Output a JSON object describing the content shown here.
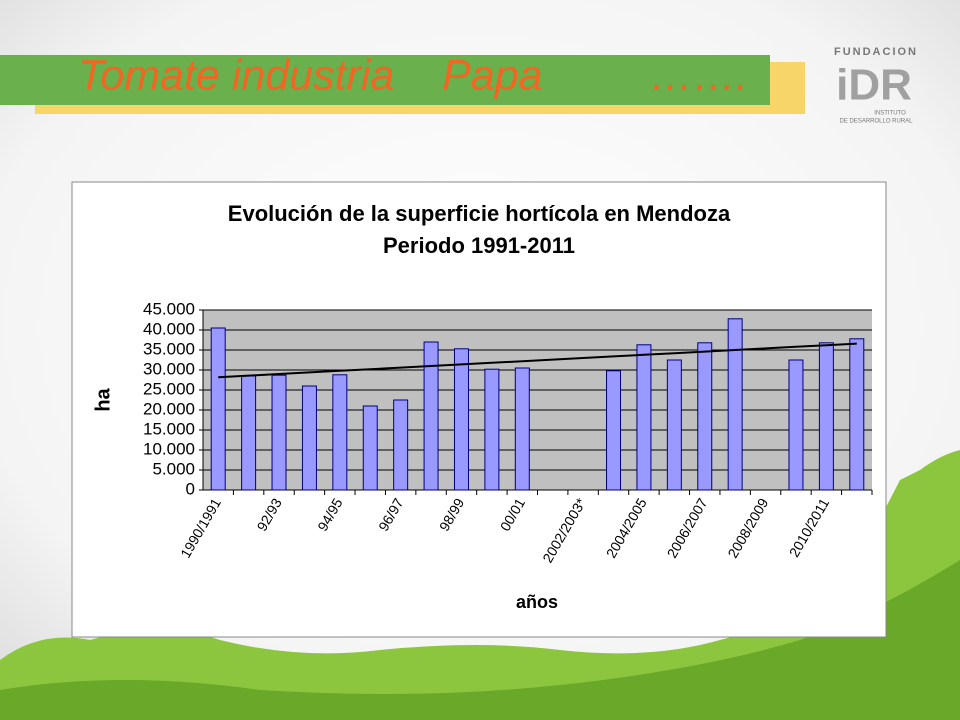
{
  "slide_title": "Tomate industria    Papa         …….",
  "logo": {
    "top": "FUNDACION",
    "mark": "iDR",
    "line1": "INSTITUTO",
    "line2": "DE DESARROLLO RURAL"
  },
  "chart_data": {
    "type": "bar",
    "title": "Evolución de la superficie hortícola en Mendoza",
    "subtitle": "Periodo 1991-2011",
    "x_label": "años",
    "y_label": "ha",
    "categories": [
      "1990/1991",
      null,
      "92/93",
      null,
      "94/95",
      null,
      "96/97",
      null,
      "98/99",
      null,
      "00/01",
      null,
      "2002/2003*",
      null,
      "2004/2005",
      null,
      "2006/2007",
      null,
      "2008/2009",
      null,
      "2010/2011",
      null
    ],
    "series": [
      {
        "type": "bar",
        "color": "#9999ff",
        "values": [
          40500,
          28500,
          28700,
          26000,
          28800,
          21000,
          22500,
          37000,
          35300,
          30200,
          30500,
          null,
          null,
          29800,
          36300,
          32500,
          36800,
          42800,
          null,
          32500,
          36800,
          37800
        ]
      },
      {
        "type": "line",
        "color": "#000000",
        "values": [
          28200,
          28600,
          29000,
          29400,
          29800,
          30200,
          30600,
          31000,
          31400,
          31800,
          32200,
          32600,
          33000,
          33400,
          33800,
          34200,
          34600,
          35000,
          35400,
          35800,
          36200,
          36600
        ]
      }
    ],
    "ylim": [
      0,
      45000
    ],
    "yticks": [
      0,
      {
        "value": 5000,
        "label": "5.000"
      },
      {
        "value": 10000,
        "label": "10.000"
      },
      {
        "value": 15000,
        "label": "15.000"
      },
      {
        "value": 20000,
        "label": "20.000"
      },
      {
        "value": 25000,
        "label": "25.000"
      },
      {
        "value": 30000,
        "label": "30.000"
      },
      {
        "value": 35000,
        "label": "35.000"
      },
      {
        "value": 40000,
        "label": "40.000"
      },
      {
        "value": 45000,
        "label": "45.000"
      }
    ],
    "grid": true,
    "plot_background": "#c0c0c0"
  }
}
